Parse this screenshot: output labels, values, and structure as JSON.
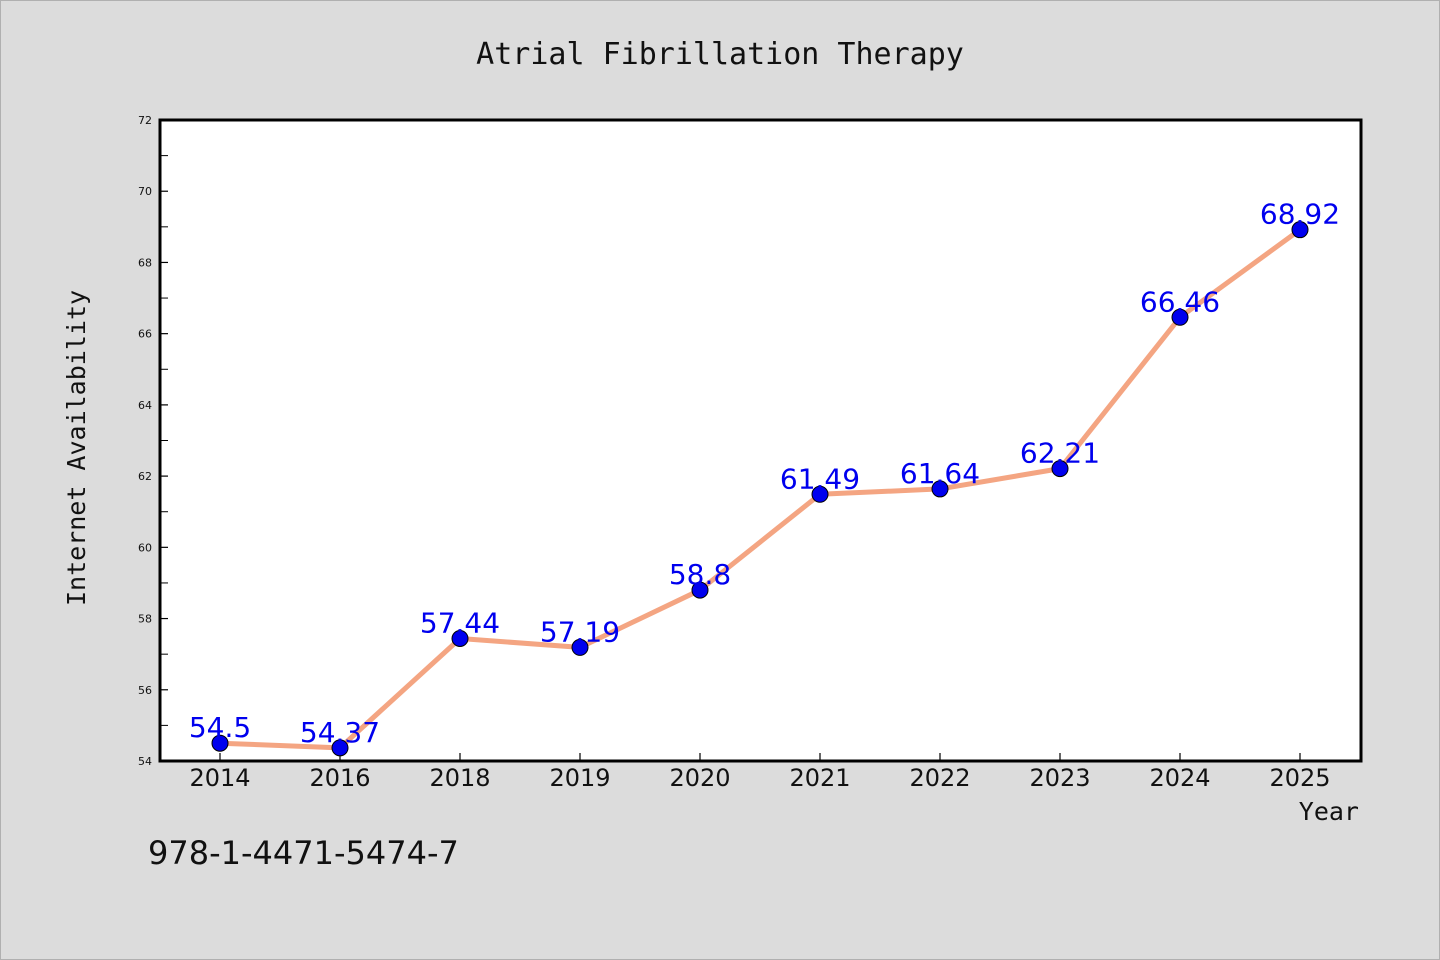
{
  "chart_data": {
    "type": "line",
    "title": "Atrial Fibrillation Therapy",
    "xlabel": "Year",
    "ylabel": "Internet Availability",
    "categories": [
      "2014",
      "2016",
      "2018",
      "2019",
      "2020",
      "2021",
      "2022",
      "2023",
      "2024",
      "2025"
    ],
    "values": [
      54.5,
      54.37,
      57.44,
      57.19,
      58.8,
      61.49,
      61.64,
      62.21,
      66.46,
      68.92
    ],
    "data_labels": [
      "54.5",
      "54.37",
      "57.44",
      "57.19",
      "58.8",
      "61.49",
      "61.64",
      "62.21",
      "66.46",
      "68.92"
    ],
    "ylim": [
      54,
      72
    ],
    "yticks": [
      54,
      56,
      58,
      60,
      62,
      64,
      66,
      68,
      70,
      72
    ],
    "grid": false,
    "line_color": "#f4a582",
    "marker_color": "#0000ee",
    "label_color": "#0000ee"
  },
  "footer_text": "978-1-4471-5474-7"
}
